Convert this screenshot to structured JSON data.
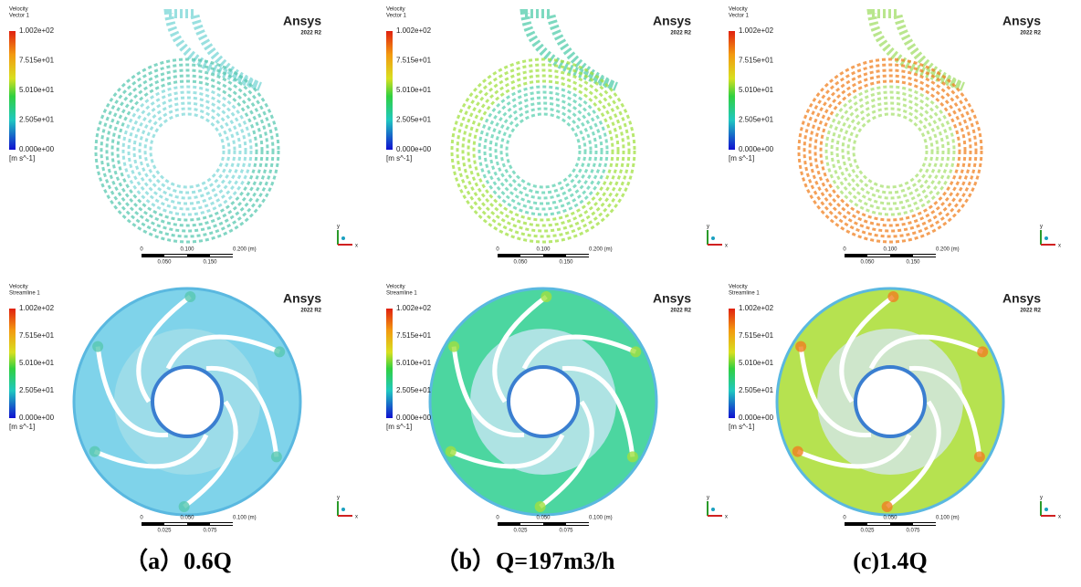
{
  "panels": [
    {
      "legend_title": "Velocity",
      "legend_subtitle": "Vector 1",
      "ticks": [
        "1.002e+02",
        "7.515e+01",
        "5.010e+01",
        "2.505e+01",
        "0.000e+00"
      ],
      "unit": "[m s^-1]",
      "brand": "Ansys",
      "version": "2022 R2",
      "scale_top": [
        "0",
        "0.100",
        "0.200 (m)"
      ],
      "scale_bottom": [
        "0.050",
        "0.150"
      ],
      "axes": [
        "y",
        "x"
      ]
    },
    {
      "legend_title": "Velocity",
      "legend_subtitle": "Vector 1",
      "ticks": [
        "1.002e+02",
        "7.515e+01",
        "5.010e+01",
        "2.505e+01",
        "0.000e+00"
      ],
      "unit": "[m s^-1]",
      "brand": "Ansys",
      "version": "2022 R2",
      "scale_top": [
        "0",
        "0.100",
        "0.200 (m)"
      ],
      "scale_bottom": [
        "0.050",
        "0.150"
      ],
      "axes": [
        "y",
        "x"
      ]
    },
    {
      "legend_title": "Velocity",
      "legend_subtitle": "Vector 1",
      "ticks": [
        "1.002e+02",
        "7.515e+01",
        "5.010e+01",
        "2.505e+01",
        "0.000e+00"
      ],
      "unit": "[m s^-1]",
      "brand": "Ansys",
      "version": "2022 R2",
      "scale_top": [
        "0",
        "0.100",
        "0.200 (m)"
      ],
      "scale_bottom": [
        "0.050",
        "0.150"
      ],
      "axes": [
        "y",
        "x"
      ]
    },
    {
      "legend_title": "Velocity",
      "legend_subtitle": "Streamline 1",
      "ticks": [
        "1.002e+02",
        "7.515e+01",
        "5.010e+01",
        "2.505e+01",
        "0.000e+00"
      ],
      "unit": "[m s^-1]",
      "brand": "Ansys",
      "version": "2022 R2",
      "scale_top": [
        "0",
        "0.050",
        "0.100 (m)"
      ],
      "scale_bottom": [
        "0.025",
        "0.075"
      ],
      "axes": [
        "y",
        "x"
      ]
    },
    {
      "legend_title": "Velocity",
      "legend_subtitle": "Streamline 1",
      "ticks": [
        "1.002e+02",
        "7.515e+01",
        "5.010e+01",
        "2.505e+01",
        "0.000e+00"
      ],
      "unit": "[m s^-1]",
      "brand": "Ansys",
      "version": "2022 R2",
      "scale_top": [
        "0",
        "0.050",
        "0.100 (m)"
      ],
      "scale_bottom": [
        "0.025",
        "0.075"
      ],
      "axes": [
        "y",
        "x"
      ]
    },
    {
      "legend_title": "Velocity",
      "legend_subtitle": "Streamline 1",
      "ticks": [
        "1.002e+02",
        "7.515e+01",
        "5.010e+01",
        "2.505e+01",
        "0.000e+00"
      ],
      "unit": "[m s^-1]",
      "brand": "Ansys",
      "version": "2022 R2",
      "scale_top": [
        "0",
        "0.050",
        "0.100 (m)"
      ],
      "scale_bottom": [
        "0.025",
        "0.075"
      ],
      "axes": [
        "y",
        "x"
      ]
    }
  ],
  "captions": [
    "（a）0.6Q",
    "（b）Q=197m3/h",
    "(c)1.4Q"
  ]
}
